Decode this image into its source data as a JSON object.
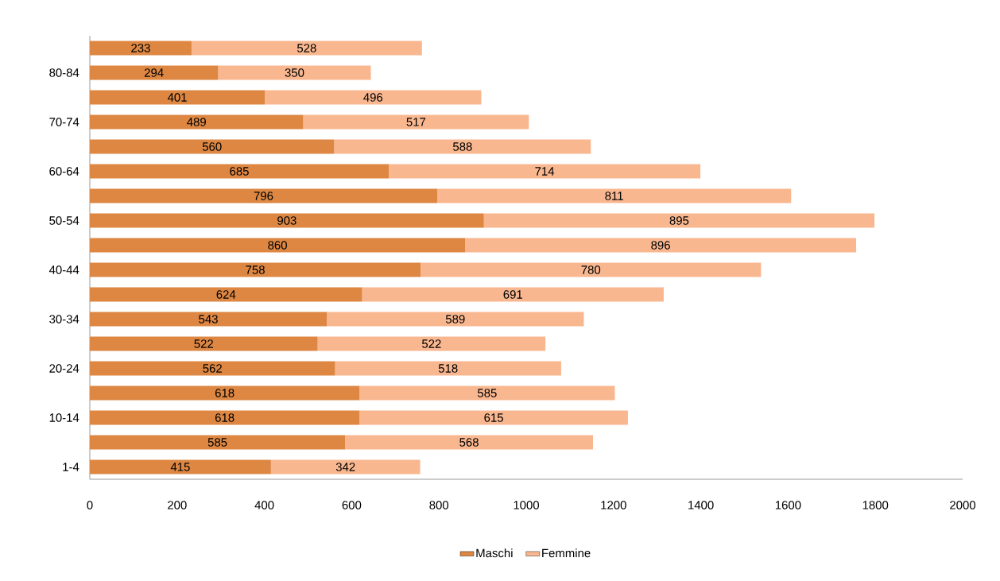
{
  "chart_data": {
    "type": "bar",
    "orientation": "horizontal",
    "stacked": true,
    "categories": [
      null,
      "80-84",
      null,
      "70-74",
      null,
      "60-64",
      null,
      "50-54",
      null,
      "40-44",
      null,
      "30-34",
      null,
      "20-24",
      null,
      "10-14",
      null,
      "1-4"
    ],
    "series": [
      {
        "name": "Maschi",
        "color": "#dd8743",
        "values": [
          233,
          294,
          401,
          489,
          560,
          685,
          796,
          903,
          860,
          758,
          624,
          543,
          522,
          562,
          618,
          618,
          585,
          415
        ]
      },
      {
        "name": "Femmine",
        "color": "#f9b790",
        "values": [
          528,
          350,
          496,
          517,
          588,
          714,
          811,
          895,
          896,
          780,
          691,
          589,
          522,
          518,
          585,
          615,
          568,
          342
        ]
      }
    ],
    "xlim": [
      0,
      2000
    ],
    "xticks": [
      0,
      200,
      400,
      600,
      800,
      1000,
      1200,
      1400,
      1600,
      1800,
      2000
    ],
    "data_labels": true,
    "legend": "bottom",
    "grid": false
  }
}
